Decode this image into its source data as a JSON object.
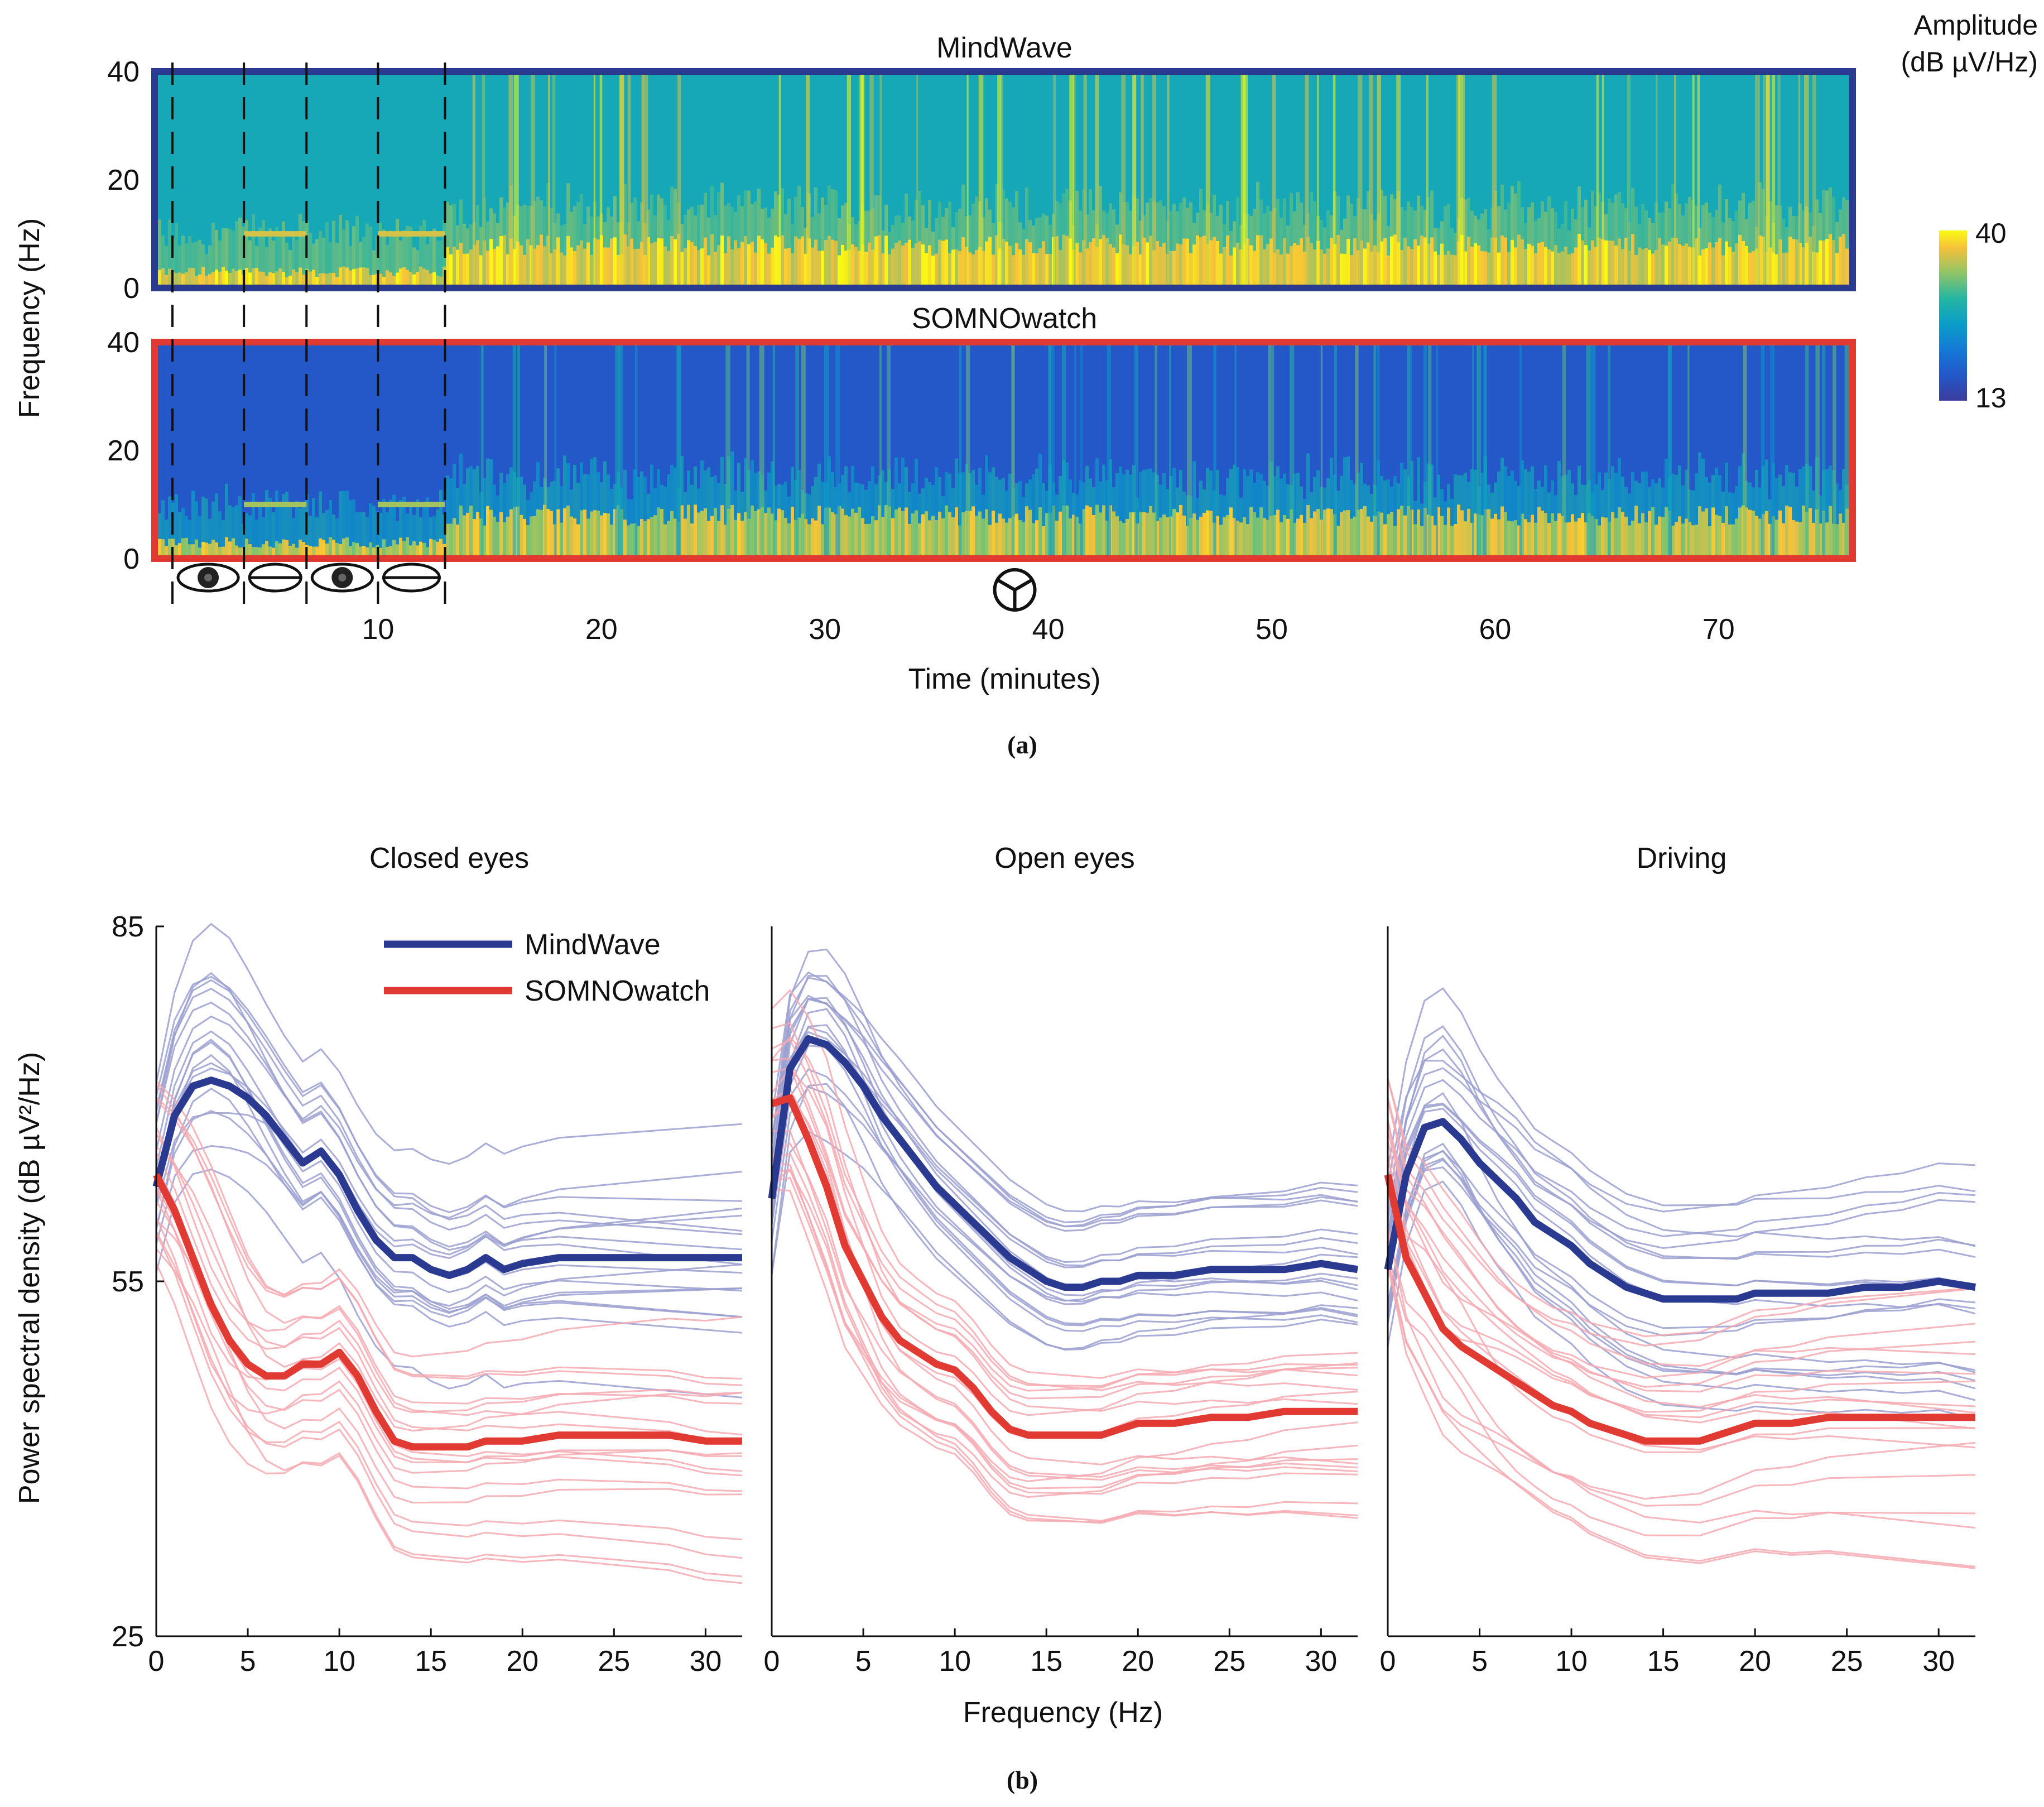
{
  "figure": {
    "panel_a_label": "(a)",
    "panel_b_label": "(b)"
  },
  "colors": {
    "mindwave": "#2b3a91",
    "somnowatch": "#e03a32",
    "mindwave_light": "#9a9fd0",
    "somnowatch_light": "#f6a8b0"
  },
  "chart_data": [
    {
      "type": "heatmap",
      "id": "spectrograms",
      "xlabel": "Time (minutes)",
      "ylabel": "Frequency (Hz)",
      "xlim": [
        0,
        76
      ],
      "ylim": [
        0,
        40
      ],
      "xticks": [
        10,
        20,
        30,
        40,
        50,
        60,
        70
      ],
      "yticks": [
        0,
        20,
        40
      ],
      "colorbar": {
        "title_line1": "Amplitude",
        "title_line2": "(dB µV/Hz)",
        "min": 13,
        "max": 40
      },
      "event_markers_min": [
        0.8,
        4.0,
        6.8,
        10.0,
        13.0
      ],
      "phase_icons": [
        {
          "label": "open-eyes",
          "start": 0.8,
          "end": 4.0
        },
        {
          "label": "closed-eyes",
          "start": 4.0,
          "end": 6.8
        },
        {
          "label": "open-eyes",
          "start": 6.8,
          "end": 10.0
        },
        {
          "label": "closed-eyes",
          "start": 10.0,
          "end": 13.0
        },
        {
          "label": "driving",
          "at": 38.5
        }
      ],
      "panels": [
        {
          "name": "MindWave",
          "background_level": 27,
          "low_freq_level": 40
        },
        {
          "name": "SOMNOwatch",
          "background_level": 17,
          "low_freq_level": 38
        }
      ]
    },
    {
      "type": "line",
      "id": "psd",
      "xlabel": "Frequency (Hz)",
      "ylabel": "Power spectral density (dB µV²/Hz)",
      "xlim": [
        0,
        32
      ],
      "ylim": [
        25,
        85
      ],
      "xticks": [
        0,
        5,
        10,
        15,
        20,
        25,
        30
      ],
      "yticks": [
        25,
        55,
        85
      ],
      "legend": [
        "MindWave",
        "SOMNOwatch"
      ],
      "x": [
        0,
        1,
        2,
        3,
        4,
        5,
        6,
        7,
        8,
        9,
        10,
        11,
        12,
        13,
        14,
        15,
        16,
        17,
        18,
        19,
        20,
        22,
        24,
        26,
        28,
        30,
        32
      ],
      "panels": [
        {
          "title": "Closed eyes",
          "series": [
            {
              "name": "MindWave",
              "values": [
                63,
                69,
                71.5,
                72,
                71.5,
                70.5,
                69,
                67,
                65,
                66,
                64,
                61,
                58.5,
                57,
                57,
                56,
                55.5,
                56,
                57,
                56,
                56.5,
                57,
                57,
                57,
                57,
                57,
                57
              ]
            },
            {
              "name": "SOMNOwatch",
              "values": [
                64,
                61,
                57,
                53,
                50,
                48,
                47,
                47,
                48,
                48,
                49,
                47,
                44,
                41.5,
                41,
                41,
                41,
                41,
                41.5,
                41.5,
                41.5,
                42,
                42,
                42,
                42,
                41.5,
                41.5
              ]
            }
          ]
        },
        {
          "title": "Open eyes",
          "series": [
            {
              "name": "MindWave",
              "values": [
                62,
                73,
                75.5,
                75,
                73.5,
                71.5,
                69,
                67,
                65,
                63,
                61.5,
                60,
                58.5,
                57,
                56,
                55,
                54.5,
                54.5,
                55,
                55,
                55.5,
                55.5,
                56,
                56,
                56,
                56.5,
                56
              ]
            },
            {
              "name": "SOMNOwatch",
              "values": [
                70,
                70.5,
                67,
                63,
                58,
                55,
                52,
                50,
                49,
                48,
                47.5,
                46,
                44,
                42.5,
                42,
                42,
                42,
                42,
                42,
                42.5,
                43,
                43,
                43.5,
                43.5,
                44,
                44,
                44
              ]
            }
          ]
        },
        {
          "title": "Driving",
          "series": [
            {
              "name": "MindWave",
              "values": [
                56,
                64,
                68,
                68.5,
                67,
                65,
                63.5,
                62,
                60,
                59,
                58,
                56.5,
                55.5,
                54.5,
                54,
                53.5,
                53.5,
                53.5,
                53.5,
                53.5,
                54,
                54,
                54,
                54.5,
                54.5,
                55,
                54.5
              ]
            },
            {
              "name": "SOMNOwatch",
              "values": [
                64,
                57,
                54,
                51,
                49.5,
                48.5,
                47.5,
                46.5,
                45.5,
                44.5,
                44,
                43,
                42.5,
                42,
                41.5,
                41.5,
                41.5,
                41.5,
                42,
                42.5,
                43,
                43,
                43.5,
                43.5,
                43.5,
                43.5,
                43.5
              ]
            }
          ]
        }
      ]
    }
  ]
}
